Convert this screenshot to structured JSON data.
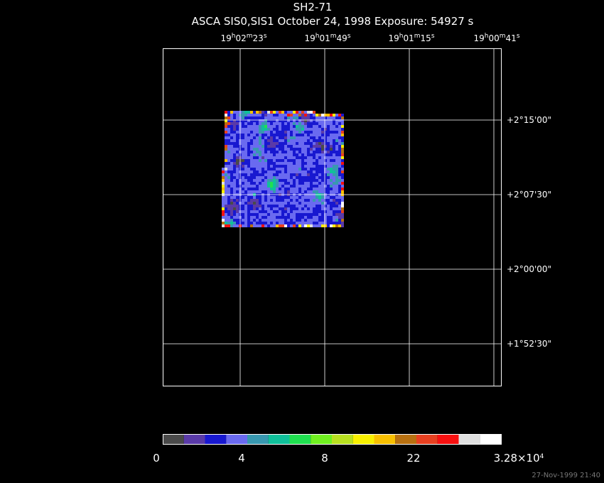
{
  "header": {
    "title": "SH2-71",
    "subtitle": "ASCA SIS0,SIS1 October 24, 1998 Exposure: 54927 s"
  },
  "ra_labels": [
    {
      "parts": [
        "19",
        "h",
        "02",
        "m",
        "23",
        "s"
      ]
    },
    {
      "parts": [
        "19",
        "h",
        "01",
        "m",
        "49",
        "s"
      ]
    },
    {
      "parts": [
        "19",
        "h",
        "01",
        "m",
        "15",
        "s"
      ]
    },
    {
      "parts": [
        "19",
        "h",
        "00",
        "m",
        "41",
        "s"
      ]
    }
  ],
  "dec_labels": [
    "+2°15'00\"",
    "+2°07'30\"",
    "+2°00'00\"",
    "+1°52'30\""
  ],
  "colorbar": {
    "colors": [
      "#4a4a4a",
      "#5a3aa8",
      "#1818d0",
      "#6a6af0",
      "#3898b0",
      "#10c09a",
      "#20e050",
      "#70f020",
      "#b8e020",
      "#f8f000",
      "#f8c000",
      "#b87010",
      "#e84020",
      "#f81010",
      "#e0e0e0",
      "#ffffff"
    ],
    "labels": [
      {
        "parts": [
          "0"
        ]
      },
      {
        "parts": [
          "4"
        ]
      },
      {
        "parts": [
          "8"
        ]
      },
      {
        "parts": [
          "22"
        ]
      },
      {
        "parts": [
          "3.28×10",
          "4"
        ]
      }
    ]
  },
  "timestamp": "27-Nov-1999 21:40"
}
